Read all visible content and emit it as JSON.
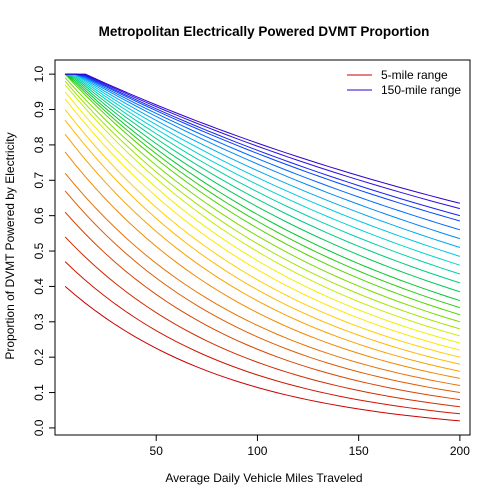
{
  "chart_data": {
    "type": "line",
    "title": "Metropolitan Electrically Powered DVMT Proportion",
    "xlabel": "Average Daily Vehicle Miles Traveled",
    "ylabel": "Proportion of DVMT Powered by Electricity",
    "xlim": [
      0,
      205
    ],
    "ylim": [
      -0.02,
      1.04
    ],
    "xticks": [
      50,
      100,
      150,
      200
    ],
    "yticks": [
      0.0,
      0.1,
      0.2,
      0.3,
      0.4,
      0.5,
      0.6,
      0.7,
      0.8,
      0.9,
      1.0
    ],
    "grid": false,
    "legend_position": "top-right",
    "legend": [
      {
        "label": "5-mile range",
        "color": "#cc0000"
      },
      {
        "label": "150-mile range",
        "color": "#3300cc"
      }
    ],
    "x": [
      5,
      10,
      15,
      20,
      25,
      30,
      35,
      40,
      45,
      50,
      55,
      60,
      65,
      70,
      75,
      80,
      85,
      90,
      95,
      100,
      105,
      110,
      115,
      120,
      125,
      130,
      135,
      140,
      145,
      150,
      155,
      160,
      165,
      170,
      175,
      180,
      185,
      190,
      195,
      200
    ],
    "series": [
      {
        "range_miles": 5,
        "color": "#cc0000",
        "y_at_5": 0.4,
        "y_at_200": 0.02
      },
      {
        "range_miles": 10,
        "color": "#cc1600",
        "y_at_5": 0.47,
        "y_at_200": 0.04
      },
      {
        "range_miles": 15,
        "color": "#d02c00",
        "y_at_5": 0.54,
        "y_at_200": 0.06
      },
      {
        "range_miles": 20,
        "color": "#d84400",
        "y_at_5": 0.61,
        "y_at_200": 0.08
      },
      {
        "range_miles": 25,
        "color": "#e05a00",
        "y_at_5": 0.67,
        "y_at_200": 0.1
      },
      {
        "range_miles": 30,
        "color": "#e87000",
        "y_at_5": 0.72,
        "y_at_200": 0.12
      },
      {
        "range_miles": 35,
        "color": "#f08800",
        "y_at_5": 0.78,
        "y_at_200": 0.14
      },
      {
        "range_miles": 40,
        "color": "#f8a000",
        "y_at_5": 0.83,
        "y_at_200": 0.16
      },
      {
        "range_miles": 45,
        "color": "#ffb800",
        "y_at_5": 0.87,
        "y_at_200": 0.18
      },
      {
        "range_miles": 50,
        "color": "#ffd000",
        "y_at_5": 0.9,
        "y_at_200": 0.2
      },
      {
        "range_miles": 55,
        "color": "#ffe800",
        "y_at_5": 0.93,
        "y_at_200": 0.22
      },
      {
        "range_miles": 60,
        "color": "#f0f000",
        "y_at_5": 0.95,
        "y_at_200": 0.24
      },
      {
        "range_miles": 65,
        "color": "#c8ec00",
        "y_at_5": 0.97,
        "y_at_200": 0.26
      },
      {
        "range_miles": 70,
        "color": "#a0e400",
        "y_at_5": 0.98,
        "y_at_200": 0.28
      },
      {
        "range_miles": 75,
        "color": "#78dc00",
        "y_at_5": 0.99,
        "y_at_200": 0.3
      },
      {
        "range_miles": 80,
        "color": "#50d400",
        "y_at_5": 1.0,
        "y_at_200": 0.32
      },
      {
        "range_miles": 85,
        "color": "#28cc10",
        "y_at_5": 1.0,
        "y_at_200": 0.34
      },
      {
        "range_miles": 90,
        "color": "#00c830",
        "y_at_5": 1.0,
        "y_at_200": 0.36
      },
      {
        "range_miles": 95,
        "color": "#00c858",
        "y_at_5": 1.0,
        "y_at_200": 0.385
      },
      {
        "range_miles": 100,
        "color": "#00cc80",
        "y_at_5": 1.0,
        "y_at_200": 0.41
      },
      {
        "range_miles": 105,
        "color": "#00d0a8",
        "y_at_5": 1.0,
        "y_at_200": 0.435
      },
      {
        "range_miles": 110,
        "color": "#00d4d0",
        "y_at_5": 1.0,
        "y_at_200": 0.46
      },
      {
        "range_miles": 115,
        "color": "#00c8e8",
        "y_at_5": 1.0,
        "y_at_200": 0.485
      },
      {
        "range_miles": 120,
        "color": "#00a8f0",
        "y_at_5": 1.0,
        "y_at_200": 0.51
      },
      {
        "range_miles": 125,
        "color": "#0088f8",
        "y_at_5": 1.0,
        "y_at_200": 0.535
      },
      {
        "range_miles": 130,
        "color": "#0066ff",
        "y_at_5": 1.0,
        "y_at_200": 0.56
      },
      {
        "range_miles": 135,
        "color": "#0044ff",
        "y_at_5": 1.0,
        "y_at_200": 0.585
      },
      {
        "range_miles": 140,
        "color": "#1a22f0",
        "y_at_5": 1.0,
        "y_at_200": 0.6
      },
      {
        "range_miles": 145,
        "color": "#2a10dc",
        "y_at_5": 1.0,
        "y_at_200": 0.62
      },
      {
        "range_miles": 150,
        "color": "#3300cc",
        "y_at_5": 1.0,
        "y_at_200": 0.635
      }
    ]
  }
}
